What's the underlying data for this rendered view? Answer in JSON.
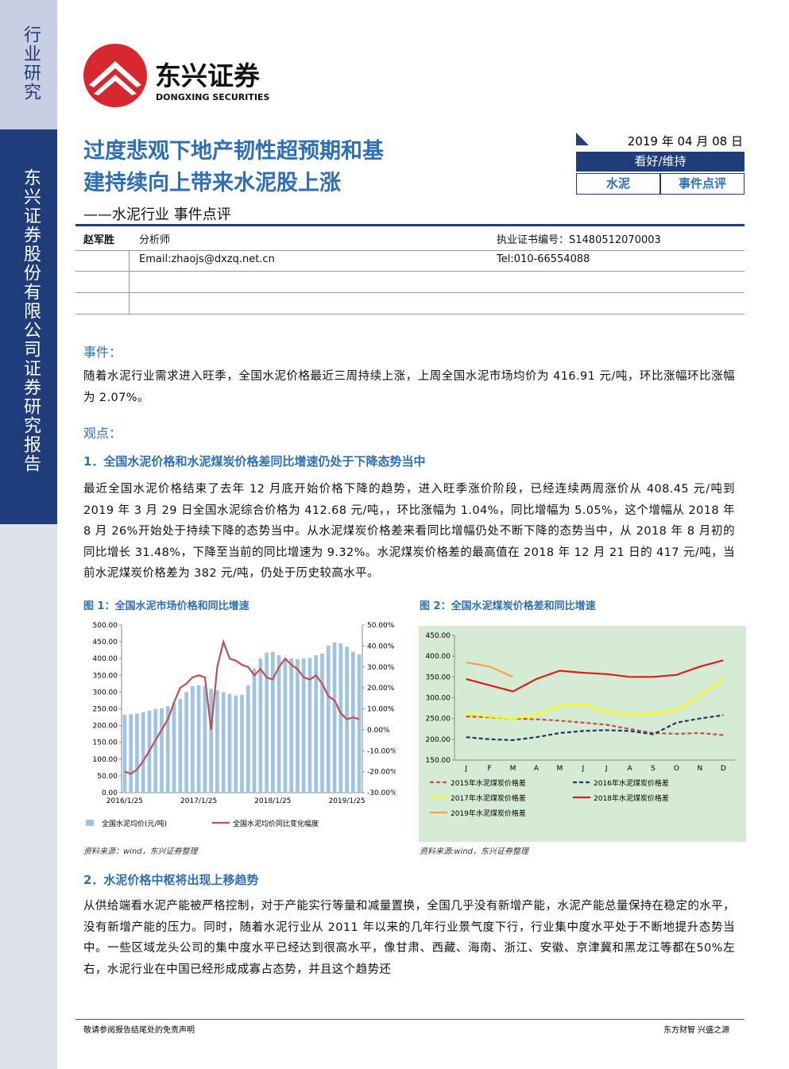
{
  "sidebar": {
    "category": "行业研究",
    "company": "东兴证券股份有限公司证券研究报告"
  },
  "logo": {
    "name": "东兴证券",
    "english": "DONGXING SECURITIES"
  },
  "header": {
    "title_lines": [
      "过度悲观下地产韧性超预期和基",
      "建持续向上带来水泥股上涨"
    ],
    "subtitle": "——水泥行业 事件点评",
    "date": "2019 年 04 月 08 日",
    "rating": "看好/维持",
    "industry": "水泥",
    "report_type": "事件点评"
  },
  "analyst": {
    "name": "赵军胜",
    "role": "分析师",
    "cert": "执业证书编号：S1480512070003",
    "email": "Email:zhaojs@dxzq.net.cn",
    "tel": "Tel:010-66554088"
  },
  "event": {
    "heading": "事件：",
    "text": "随着水泥行业需求进入旺季，全国水泥价格最近三周持续上涨，上周全国水泥市场均价为 416.91 元/吨，环比涨幅环比涨幅为 2.07%。"
  },
  "view": {
    "heading": "观点："
  },
  "point1": {
    "heading": "1．全国水泥价格和水泥煤炭价格差同比增速仍处于下降态势当中",
    "text": "最近全国水泥价格结束了去年 12 月底开始价格下降的趋势，进入旺季涨价阶段，已经连续两周涨价从 408.45 元/吨到 2019 年 3 月 29 日全国水泥综合价格为 412.68 元/吨，，环比涨幅为 1.04%，同比增幅为 5.05%，这个增幅从 2018 年 8 月 26%开始处于持续下降的态势当中。从水泥煤炭价格差来看同比增幅仍处不断下降的态势当中，从 2018 年 8 月初的同比增长 31.48%，下降至当前的同比增速为 9.32%。水泥煤炭价格差的最高值在 2018 年 12 月 21 日的 417 元/吨，当前水泥煤炭价格差为 382 元/吨，仍处于历史较高水平。"
  },
  "figures": [
    {
      "title": "图 1：全国水泥市场价格和同比增速",
      "source": "资料来源：wind，东兴证券整理",
      "chart_data": {
        "type": "bar-line",
        "categories": [
          "2016/1/25",
          null,
          null,
          null,
          null,
          null,
          null,
          null,
          null,
          null,
          null,
          null,
          "2017/1/25",
          null,
          null,
          null,
          null,
          null,
          null,
          null,
          null,
          null,
          null,
          null,
          "2018/1/25",
          null,
          null,
          null,
          null,
          null,
          null,
          null,
          null,
          null,
          null,
          null,
          "2019/1/25",
          null,
          null
        ],
        "series": [
          {
            "name": "全国水泥均价(元/吨)",
            "type": "bar",
            "color": "#9fc3e4",
            "values": [
              232,
              234,
              236,
              240,
              245,
              250,
              252,
              258,
              268,
              280,
              300,
              318,
              320,
              318,
              310,
              305,
              300,
              295,
              290,
              292,
              320,
              370,
              400,
              418,
              420,
              410,
              400,
              400,
              398,
              400,
              402,
              410,
              415,
              438,
              448,
              445,
              435,
              420,
              412
            ]
          },
          {
            "name": "全国水泥均价同比变化幅度",
            "type": "line",
            "axis": "y2",
            "color": "#c0504d",
            "values": [
              -20,
              -21,
              -19,
              -15,
              -10,
              -5,
              0,
              5,
              13,
              20,
              22,
              25,
              26,
              25,
              0,
              30,
              42,
              34,
              33,
              31,
              30,
              26,
              29,
              25,
              24,
              30,
              34,
              31,
              29,
              25,
              24,
              26,
              22,
              16,
              14,
              8,
              5,
              6,
              5
            ]
          }
        ],
        "ylim": [
          0,
          500
        ],
        "yticks": [
          {
            "value": 0,
            "label": "0.00"
          },
          {
            "value": 50,
            "label": "50.00"
          },
          {
            "value": 100,
            "label": "100.00"
          },
          {
            "value": 150,
            "label": "150.00"
          },
          {
            "value": 200,
            "label": "200.00"
          },
          {
            "value": 250,
            "label": "250.00"
          },
          {
            "value": 300,
            "label": "300.00"
          },
          {
            "value": 350,
            "label": "350.00"
          },
          {
            "value": 400,
            "label": "400.00"
          },
          {
            "value": 450,
            "label": "450.00"
          },
          {
            "value": 500,
            "label": "500.00"
          }
        ],
        "y2lim": [
          -30,
          50
        ],
        "y2ticks": [
          {
            "value": -30,
            "label": "-30.00%"
          },
          {
            "value": -20,
            "label": "-20.00%"
          },
          {
            "value": -10,
            "label": "-10.00%"
          },
          {
            "value": 0,
            "label": "0.00%"
          },
          {
            "value": 10,
            "label": "10.00%"
          },
          {
            "value": 20,
            "label": "20.00%"
          },
          {
            "value": 30,
            "label": "30.00%"
          },
          {
            "value": 40,
            "label": "40.00%"
          },
          {
            "value": 50,
            "label": "50.00%"
          }
        ],
        "background": "#ffffff"
      }
    },
    {
      "title": "图 2：全国水泥煤炭价格差和同比增速",
      "source": "资料来源:wind，东兴证券整理",
      "chart_data": {
        "type": "line",
        "categories": [
          "J",
          "F",
          "M",
          "A",
          "M",
          "J",
          "J",
          "A",
          "S",
          "O",
          "N",
          "D"
        ],
        "series": [
          {
            "name": "2015年水泥煤炭价格差",
            "color": "#c0504d",
            "dash": true,
            "values": [
              255,
              253,
              250,
              248,
              245,
              240,
              235,
              225,
              215,
              213,
              215,
              210
            ]
          },
          {
            "name": "2016年水泥煤炭价格差",
            "color": "#1f3864",
            "dash": true,
            "values": [
              205,
              200,
              198,
              205,
              215,
              220,
              222,
              220,
              212,
              240,
              250,
              258
            ]
          },
          {
            "name": "2017年水泥煤炭价格差",
            "color": "#ffff00",
            "dash": false,
            "values": [
              262,
              255,
              250,
              258,
              280,
              285,
              265,
              258,
              262,
              270,
              305,
              345
            ]
          },
          {
            "name": "2018年水泥煤炭价格差",
            "color": "#e31a1c",
            "dash": false,
            "values": [
              345,
              330,
              315,
              345,
              365,
              360,
              357,
              350,
              350,
              355,
              375,
              390
            ]
          },
          {
            "name": "2019年水泥煤炭价格差",
            "color": "#f4a14f",
            "dash": false,
            "values": [
              385,
              375,
              350,
              null,
              null,
              null,
              null,
              null,
              null,
              null,
              null,
              null
            ]
          }
        ],
        "ylim": [
          150,
          450
        ],
        "yticks": [
          {
            "value": 150,
            "label": "150.00"
          },
          {
            "value": 200,
            "label": "200.00"
          },
          {
            "value": 250,
            "label": "250.00"
          },
          {
            "value": 300,
            "label": "300.00"
          },
          {
            "value": 350,
            "label": "350.00"
          },
          {
            "value": 400,
            "label": "400.00"
          },
          {
            "value": 450,
            "label": "450.00"
          }
        ],
        "background": "#d6ebd4"
      }
    }
  ],
  "point2": {
    "heading": "2．水泥价格中枢将出现上移趋势",
    "text": "从供给端看水泥产能被严格控制，对于产能实行等量和减量置换，全国几乎没有新增产能，水泥产能总量保持在稳定的水平，没有新增产能的压力。同时，随着水泥行业从 2011 年以来的几年行业景气度下行，行业集中度水平处于不断地提升态势当中。一些区域龙头公司的集中度水平已经达到很高水平，像甘肃、西藏、海南、浙江、安徽、京津冀和黑龙江等都在50%左右，水泥行业在中国已经形成成寡占态势，并且这个趋势还"
  },
  "footer": {
    "disclaimer": "敬请参阅报告结尾处的免责声明",
    "slogan": "东方财智 兴盛之源"
  }
}
